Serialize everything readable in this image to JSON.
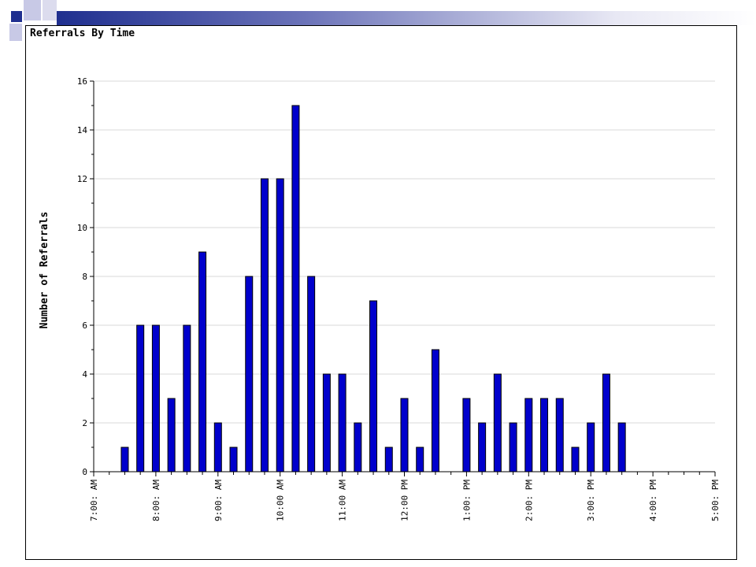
{
  "colors": {
    "bar": "#0000cc",
    "bar_stroke": "#000000",
    "grid": "#d9d9d9",
    "accent_dark": "#1f2f8f",
    "accent_light": "#c8c9e6"
  },
  "chart_data": {
    "type": "bar",
    "title": "Referrals By Time",
    "ylabel": "Number of Referrals",
    "xlabel": "",
    "ylim": [
      0,
      16
    ],
    "yticks": [
      0,
      2,
      4,
      6,
      8,
      10,
      12,
      14,
      16
    ],
    "x_tick_labels": [
      "7:00: AM",
      "8:00: AM",
      "9:00: AM",
      "10:00 AM",
      "11:00 AM",
      "12:00 PM",
      "1:00: PM",
      "2:00: PM",
      "3:00: PM",
      "4:00: PM",
      "5:00: PM"
    ],
    "bin_minutes": 15,
    "grid": true,
    "bars": [
      {
        "time": "7:30 AM",
        "value": 1
      },
      {
        "time": "7:45 AM",
        "value": 6
      },
      {
        "time": "8:00 AM",
        "value": 6
      },
      {
        "time": "8:15 AM",
        "value": 3
      },
      {
        "time": "8:30 AM",
        "value": 6
      },
      {
        "time": "8:45 AM",
        "value": 9
      },
      {
        "time": "9:00 AM",
        "value": 2
      },
      {
        "time": "9:15 AM",
        "value": 1
      },
      {
        "time": "9:30 AM",
        "value": 8
      },
      {
        "time": "9:45 AM",
        "value": 12
      },
      {
        "time": "10:00 AM",
        "value": 12
      },
      {
        "time": "10:15 AM",
        "value": 15
      },
      {
        "time": "10:30 AM",
        "value": 8
      },
      {
        "time": "10:45 AM",
        "value": 4
      },
      {
        "time": "11:00 AM",
        "value": 4
      },
      {
        "time": "11:15 AM",
        "value": 2
      },
      {
        "time": "11:30 AM",
        "value": 7
      },
      {
        "time": "11:45 AM",
        "value": 1
      },
      {
        "time": "12:00 PM",
        "value": 3
      },
      {
        "time": "12:15 PM",
        "value": 1
      },
      {
        "time": "12:30 PM",
        "value": 5
      },
      {
        "time": "1:00 PM",
        "value": 3
      },
      {
        "time": "1:15 PM",
        "value": 2
      },
      {
        "time": "1:30 PM",
        "value": 4
      },
      {
        "time": "1:45 PM",
        "value": 2
      },
      {
        "time": "2:00 PM",
        "value": 3
      },
      {
        "time": "2:15 PM",
        "value": 3
      },
      {
        "time": "2:30 PM",
        "value": 3
      },
      {
        "time": "2:45 PM",
        "value": 1
      },
      {
        "time": "3:00 PM",
        "value": 2
      },
      {
        "time": "3:15 PM",
        "value": 4
      },
      {
        "time": "3:30 PM",
        "value": 2
      }
    ]
  }
}
